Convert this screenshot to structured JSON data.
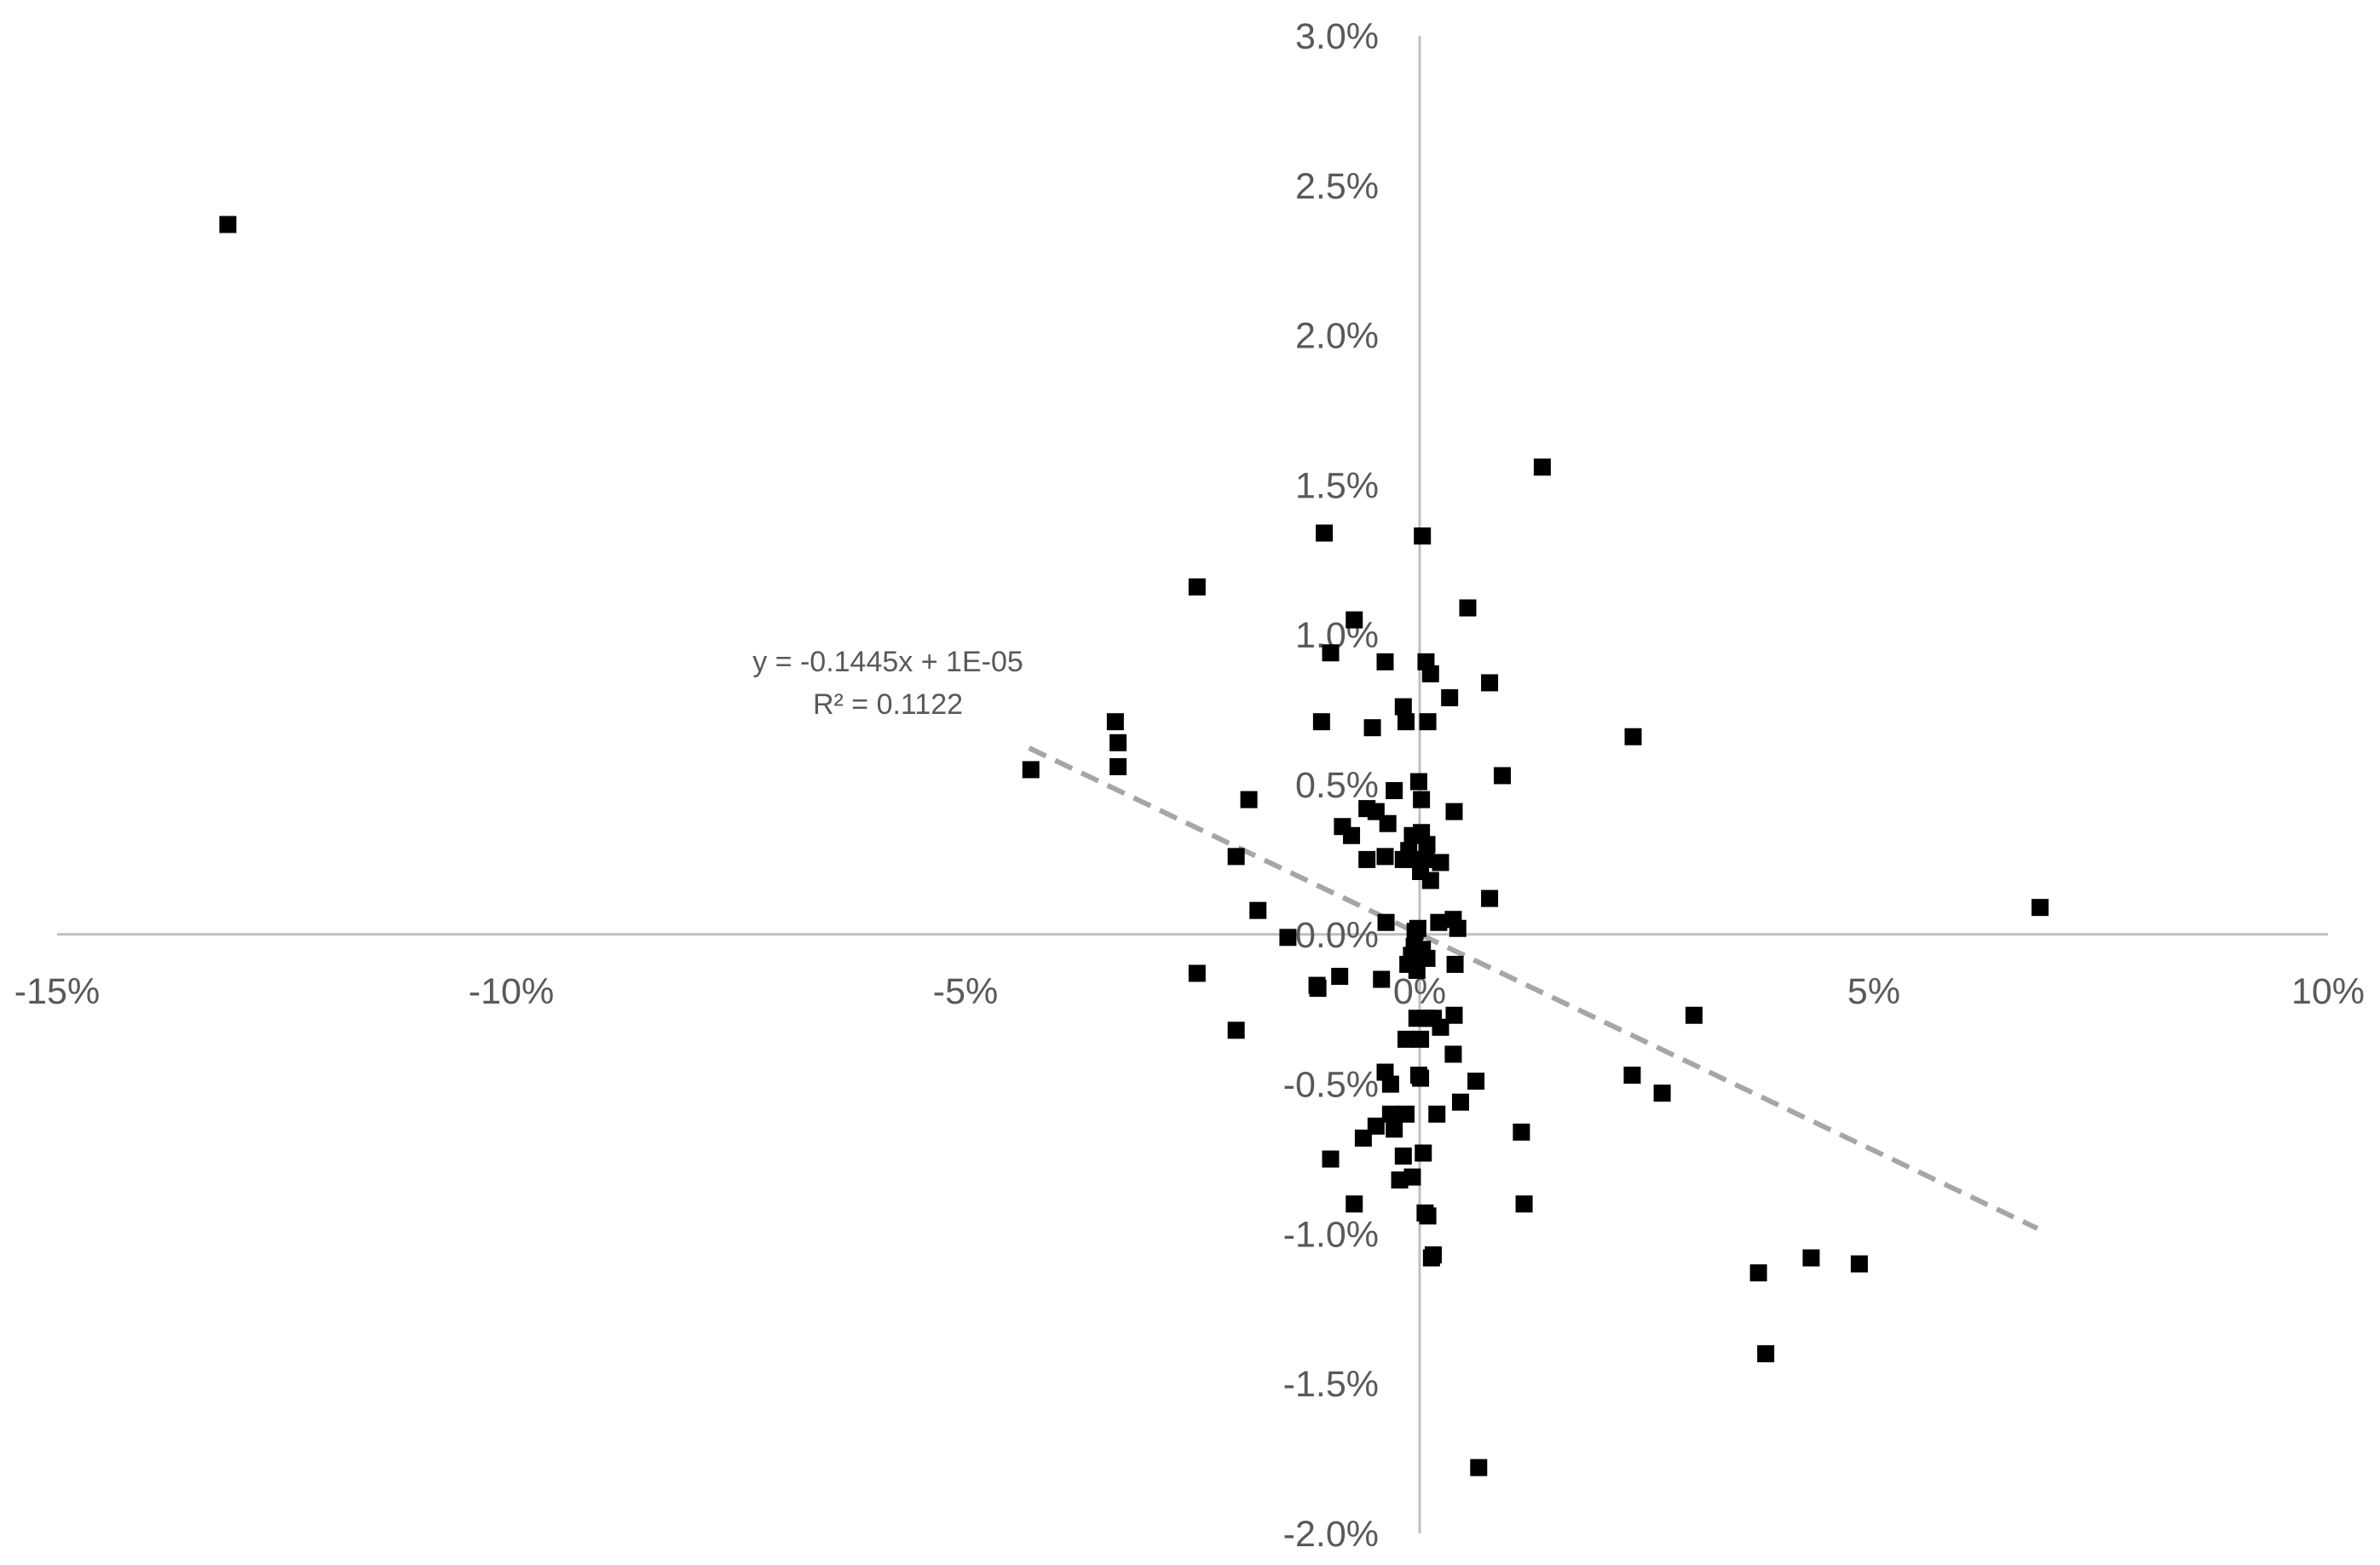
{
  "chart_data": {
    "type": "scatter",
    "title": "",
    "xlabel": "",
    "ylabel": "",
    "xlim": [
      -0.15,
      0.1
    ],
    "ylim": [
      -0.02,
      0.03
    ],
    "x_ticks": [
      -0.15,
      -0.1,
      -0.05,
      0,
      0.05,
      0.1
    ],
    "x_tick_labels": [
      "-15%",
      "-10%",
      "-5%",
      "0%",
      "5%",
      "10%"
    ],
    "y_ticks": [
      0.03,
      0.025,
      0.02,
      0.015,
      0.01,
      0.005,
      0,
      -0.005,
      -0.01,
      -0.015,
      -0.02
    ],
    "y_tick_labels": [
      "3.0%",
      "2.5%",
      "2.0%",
      "1.5%",
      "1.0%",
      "0.5%",
      "0.0%",
      "-0.5%",
      "-1.0%",
      "-1.5%",
      "-2.0%"
    ],
    "grid": false,
    "legend": "none",
    "marker_color": "#000000",
    "trendline": {
      "slope": -0.1445,
      "intercept": 1e-05,
      "x_range": [
        -0.043,
        0.068
      ],
      "color": "#a6a6a6",
      "style": "dashed",
      "equation_label": "y = -0.1445x + 1E-05",
      "r2_label": "R² = 0.1122"
    },
    "points": [
      [
        -0.1312,
        0.0237
      ],
      [
        0.0135,
        0.0156
      ],
      [
        -0.0105,
        0.0134
      ],
      [
        0.0003,
        0.0133
      ],
      [
        -0.0245,
        0.0116
      ],
      [
        0.0053,
        0.0109
      ],
      [
        -0.0072,
        0.0105
      ],
      [
        -0.0098,
        0.0094
      ],
      [
        -0.0038,
        0.0091
      ],
      [
        0.0007,
        0.0091
      ],
      [
        0.0012,
        0.0087
      ],
      [
        0.0077,
        0.0084
      ],
      [
        0.0033,
        0.0079
      ],
      [
        -0.0018,
        0.0076
      ],
      [
        -0.0335,
        0.0071
      ],
      [
        -0.0108,
        0.0071
      ],
      [
        -0.0015,
        0.0071
      ],
      [
        0.0009,
        0.0071
      ],
      [
        -0.0052,
        0.0069
      ],
      [
        0.0235,
        0.0066
      ],
      [
        -0.0332,
        0.0064
      ],
      [
        -0.0332,
        0.0056
      ],
      [
        -0.0428,
        0.0055
      ],
      [
        0.0091,
        0.0053
      ],
      [
        -0.0001,
        0.0051
      ],
      [
        -0.0028,
        0.0048
      ],
      [
        -0.0188,
        0.0045
      ],
      [
        0.0002,
        0.0045
      ],
      [
        -0.0058,
        0.0042
      ],
      [
        -0.0048,
        0.0041
      ],
      [
        0.0038,
        0.0041
      ],
      [
        -0.0035,
        0.0037
      ],
      [
        -0.0085,
        0.0036
      ],
      [
        -0.0075,
        0.0033
      ],
      [
        -0.0008,
        0.0033
      ],
      [
        0.0002,
        0.0034
      ],
      [
        0.0008,
        0.003
      ],
      [
        -0.0012,
        0.0028
      ],
      [
        -0.0038,
        0.0026
      ],
      [
        -0.0058,
        0.0025
      ],
      [
        -0.0018,
        0.0025
      ],
      [
        -0.0001,
        0.0025
      ],
      [
        0.0007,
        0.0025
      ],
      [
        0.0023,
        0.0024
      ],
      [
        -0.0202,
        0.0026
      ],
      [
        0.0001,
        0.0021
      ],
      [
        0.0012,
        0.0018
      ],
      [
        0.0077,
        0.0012
      ],
      [
        0.0683,
        0.0009
      ],
      [
        -0.0178,
        0.0008
      ],
      [
        0.0037,
        0.0005
      ],
      [
        0.0021,
        0.0004
      ],
      [
        0.0042,
        0.0002
      ],
      [
        -0.0037,
        0.0004
      ],
      [
        -0.0002,
        0.0002
      ],
      [
        -0.0005,
        0.0001
      ],
      [
        -0.0145,
        -0.0001
      ],
      [
        -0.0006,
        -0.0004
      ],
      [
        0.0003,
        -0.0005
      ],
      [
        -0.0009,
        -0.0007
      ],
      [
        0.0008,
        -0.0008
      ],
      [
        0.0039,
        -0.001
      ],
      [
        -0.0013,
        -0.001
      ],
      [
        -0.0003,
        -0.0012
      ],
      [
        -0.0245,
        -0.0013
      ],
      [
        -0.0042,
        -0.0015
      ],
      [
        -0.0088,
        -0.0014
      ],
      [
        -0.0113,
        -0.0017
      ],
      [
        -0.0112,
        -0.0018
      ],
      [
        -0.0003,
        -0.0028
      ],
      [
        0.0008,
        -0.0028
      ],
      [
        0.0015,
        -0.0028
      ],
      [
        0.0023,
        -0.0031
      ],
      [
        0.0038,
        -0.0027
      ],
      [
        0.0302,
        -0.0027
      ],
      [
        -0.0202,
        -0.0032
      ],
      [
        -0.0015,
        -0.0035
      ],
      [
        0.0001,
        -0.0035
      ],
      [
        0.0037,
        -0.004
      ],
      [
        -0.0038,
        -0.0046
      ],
      [
        -0.0001,
        -0.0047
      ],
      [
        0.0001,
        -0.0048
      ],
      [
        0.0062,
        -0.0049
      ],
      [
        -0.0032,
        -0.005
      ],
      [
        0.0234,
        -0.0047
      ],
      [
        0.0267,
        -0.0053
      ],
      [
        0.0045,
        -0.0056
      ],
      [
        0.0019,
        -0.006
      ],
      [
        -0.0032,
        -0.006
      ],
      [
        -0.0015,
        -0.006
      ],
      [
        -0.0048,
        -0.0064
      ],
      [
        -0.0028,
        -0.0065
      ],
      [
        0.0112,
        -0.0066
      ],
      [
        -0.0062,
        -0.0068
      ],
      [
        0.0004,
        -0.0073
      ],
      [
        -0.0018,
        -0.0074
      ],
      [
        -0.0098,
        -0.0075
      ],
      [
        -0.0022,
        -0.0082
      ],
      [
        -0.0008,
        -0.0081
      ],
      [
        -0.0072,
        -0.009
      ],
      [
        0.0115,
        -0.009
      ],
      [
        0.0006,
        -0.0093
      ],
      [
        0.0009,
        -0.0094
      ],
      [
        0.0015,
        -0.0107
      ],
      [
        0.0013,
        -0.0108
      ],
      [
        0.0373,
        -0.0113
      ],
      [
        0.0431,
        -0.0108
      ],
      [
        0.0484,
        -0.011
      ],
      [
        0.0381,
        -0.014
      ],
      [
        0.0065,
        -0.0178
      ]
    ]
  }
}
